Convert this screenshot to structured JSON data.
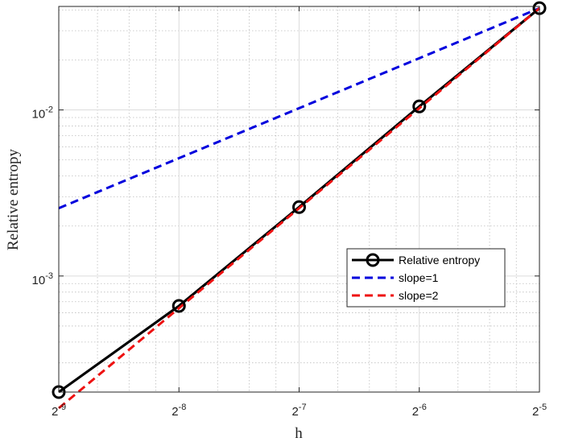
{
  "chart_data": {
    "type": "line",
    "title": "",
    "xlabel": "h",
    "ylabel": "Relative entropy",
    "x_scale": "log2",
    "y_scale": "log10",
    "x_ticks": [
      {
        "value": 0.001953125,
        "base": "2",
        "exp": "-9"
      },
      {
        "value": 0.00390625,
        "base": "2",
        "exp": "-8"
      },
      {
        "value": 0.0078125,
        "base": "2",
        "exp": "-7"
      },
      {
        "value": 0.015625,
        "base": "2",
        "exp": "-6"
      },
      {
        "value": 0.03125,
        "base": "2",
        "exp": "-5"
      }
    ],
    "y_ticks": [
      {
        "value": 0.001,
        "base": "10",
        "exp": "-3"
      },
      {
        "value": 0.01,
        "base": "10",
        "exp": "-2"
      }
    ],
    "xlim": [
      0.001953125,
      0.03125
    ],
    "ylim": [
      0.0002,
      0.042
    ],
    "grid": true,
    "legend_position": "center-right",
    "series": [
      {
        "name": "Relative entropy",
        "color": "#000000",
        "style": "solid",
        "marker": "circle",
        "x": [
          0.001953125,
          0.00390625,
          0.0078125,
          0.015625,
          0.03125
        ],
        "y": [
          0.0002,
          0.00066,
          0.0026,
          0.0105,
          0.041
        ]
      },
      {
        "name": "slope=1",
        "color": "#0000dd",
        "style": "dashed",
        "marker": "none",
        "x": [
          0.001953125,
          0.03125
        ],
        "y": [
          0.00256,
          0.041
        ]
      },
      {
        "name": "slope=2",
        "color": "#ee1111",
        "style": "dashed",
        "marker": "none",
        "x": [
          0.001953125,
          0.03125
        ],
        "y": [
          0.00016,
          0.041
        ]
      }
    ]
  }
}
